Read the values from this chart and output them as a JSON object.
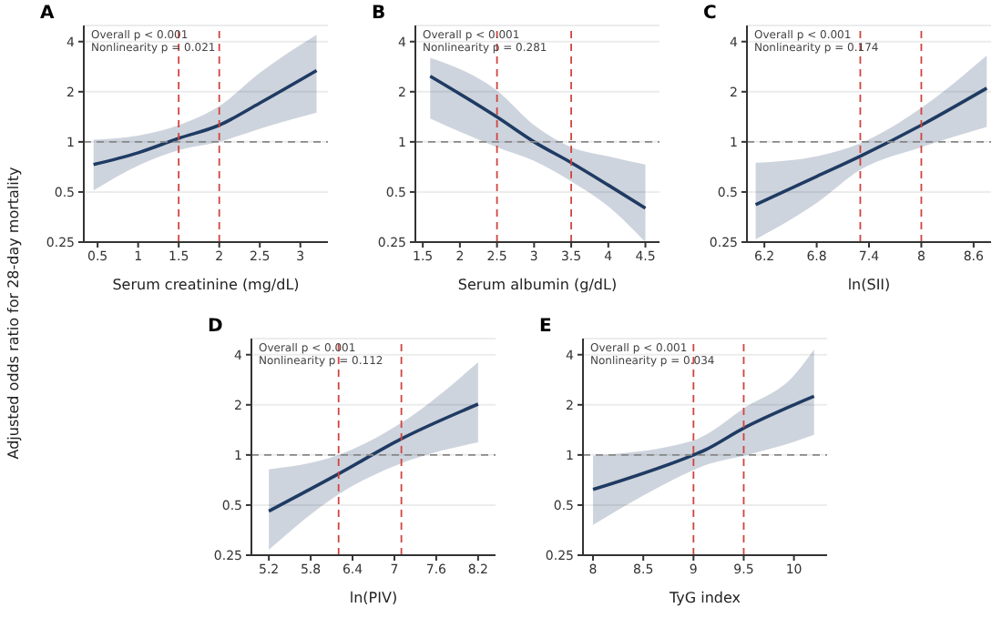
{
  "chart_data": [
    {
      "type": "line",
      "title": "A",
      "xlabel": "Serum creatinine (mg/dL)",
      "ylabel": "Adjusted odds ratio for 28-day mortality",
      "annotations": [
        "Overall p < 0.001",
        "Nonlinearity p = 0.021"
      ],
      "log": "y",
      "grid": "y",
      "xlim": [
        0.33,
        3.34
      ],
      "xticks": [
        0.5,
        1.0,
        1.5,
        2.0,
        2.5,
        3.0
      ],
      "ylim": [
        0.25,
        5
      ],
      "yticks": [
        0.25,
        0.5,
        1,
        2,
        4
      ],
      "series": [
        {
          "color": "#1f3b63",
          "x": [
            0.45,
            1.0,
            1.5,
            2.0,
            2.5,
            3.2
          ],
          "values": [
            0.73,
            0.86,
            1.05,
            1.26,
            1.71,
            2.68
          ],
          "lower": [
            0.51,
            0.72,
            0.89,
            1.0,
            1.2,
            1.5
          ],
          "upper": [
            1.03,
            1.09,
            1.26,
            1.64,
            2.6,
            4.4
          ]
        }
      ],
      "ref_lines": [
        {
          "axis": "x",
          "value": 1.5,
          "color": "#d0443f",
          "line_style": "dashed"
        },
        {
          "axis": "x",
          "value": 2.0,
          "color": "#d0443f",
          "line_style": "dashed"
        },
        {
          "axis": "y",
          "value": 1,
          "color": "#888888",
          "line_style": "dashed"
        }
      ]
    },
    {
      "type": "line",
      "title": "B",
      "xlabel": "Serum albumin (g/dL)",
      "annotations": [
        "Overall p < 0.001",
        "Nonlinearity p = 0.281"
      ],
      "log": "y",
      "grid": "y",
      "xlim": [
        1.4,
        4.69
      ],
      "xticks": [
        1.5,
        2.0,
        2.5,
        3.0,
        3.5,
        4.0,
        4.5
      ],
      "ylim": [
        0.25,
        5
      ],
      "yticks": [
        0.25,
        0.5,
        1,
        2,
        4
      ],
      "series": [
        {
          "color": "#1f3b63",
          "x": [
            1.6,
            2.5,
            3.0,
            3.5,
            4.0,
            4.5
          ],
          "values": [
            2.48,
            1.41,
            1.0,
            0.75,
            0.55,
            0.4
          ],
          "lower": [
            1.38,
            0.93,
            0.77,
            0.58,
            0.41,
            0.25
          ],
          "upper": [
            3.2,
            2.03,
            1.26,
            0.93,
            0.82,
            0.73
          ]
        }
      ],
      "ref_lines": [
        {
          "axis": "x",
          "value": 2.5,
          "color": "#d0443f",
          "line_style": "dashed"
        },
        {
          "axis": "x",
          "value": 3.5,
          "color": "#d0443f",
          "line_style": "dashed"
        },
        {
          "axis": "y",
          "value": 1,
          "color": "#888888",
          "line_style": "dashed"
        }
      ]
    },
    {
      "type": "line",
      "title": "C",
      "xlabel": "ln(SII)",
      "annotations": [
        "Overall p < 0.001",
        "Nonlinearity p = 0.174"
      ],
      "log": "y",
      "grid": "y",
      "xlim": [
        6.0,
        8.8
      ],
      "xticks": [
        6.2,
        6.8,
        7.4,
        8.0,
        8.6
      ],
      "ylim": [
        0.25,
        5
      ],
      "yticks": [
        0.25,
        0.5,
        1,
        2,
        4
      ],
      "series": [
        {
          "color": "#1f3b63",
          "x": [
            6.1,
            6.8,
            7.3,
            8.0,
            8.75
          ],
          "values": [
            0.42,
            0.62,
            0.82,
            1.26,
            2.1
          ],
          "lower": [
            0.26,
            0.43,
            0.68,
            0.93,
            1.23
          ],
          "upper": [
            0.75,
            0.82,
            0.98,
            1.6,
            3.3
          ]
        }
      ],
      "ref_lines": [
        {
          "axis": "x",
          "value": 7.3,
          "color": "#d0443f",
          "line_style": "dashed"
        },
        {
          "axis": "x",
          "value": 8.0,
          "color": "#d0443f",
          "line_style": "dashed"
        },
        {
          "axis": "y",
          "value": 1,
          "color": "#888888",
          "line_style": "dashed"
        }
      ]
    },
    {
      "type": "line",
      "title": "D",
      "xlabel": "ln(PIV)",
      "annotations": [
        "Overall p < 0.001",
        "Nonlinearity p = 0.112"
      ],
      "log": "y",
      "grid": "y",
      "xlim": [
        4.95,
        8.45
      ],
      "xticks": [
        5.2,
        5.8,
        6.4,
        7.0,
        7.6,
        8.2
      ],
      "ylim": [
        0.25,
        5
      ],
      "yticks": [
        0.25,
        0.5,
        1,
        2,
        4
      ],
      "series": [
        {
          "color": "#1f3b63",
          "x": [
            5.2,
            6.2,
            7.1,
            8.2
          ],
          "values": [
            0.46,
            0.77,
            1.25,
            2.02
          ],
          "lower": [
            0.27,
            0.58,
            0.89,
            1.19
          ],
          "upper": [
            0.82,
            1.0,
            1.56,
            3.6
          ]
        }
      ],
      "ref_lines": [
        {
          "axis": "x",
          "value": 6.2,
          "color": "#d0443f",
          "line_style": "dashed"
        },
        {
          "axis": "x",
          "value": 7.1,
          "color": "#d0443f",
          "line_style": "dashed"
        },
        {
          "axis": "y",
          "value": 1,
          "color": "#888888",
          "line_style": "dashed"
        }
      ]
    },
    {
      "type": "line",
      "title": "E",
      "xlabel": "TyG index",
      "annotations": [
        "Overall p < 0.001",
        "Nonlinearity p = 0.034"
      ],
      "log": "y",
      "grid": "y",
      "xlim": [
        7.9,
        10.33
      ],
      "xticks": [
        8.0,
        8.5,
        9.0,
        9.5,
        10.0
      ],
      "ylim": [
        0.25,
        5
      ],
      "yticks": [
        0.25,
        0.5,
        1,
        2,
        4
      ],
      "series": [
        {
          "color": "#1f3b63",
          "x": [
            8.0,
            9.0,
            9.1,
            9.5,
            10.0,
            10.2
          ],
          "values": [
            0.62,
            1.0,
            1.06,
            1.45,
            2.0,
            2.25
          ],
          "lower": [
            0.38,
            0.81,
            0.86,
            0.99,
            1.2,
            1.32
          ],
          "upper": [
            0.99,
            1.22,
            1.3,
            1.9,
            3.0,
            4.3
          ]
        }
      ],
      "ref_lines": [
        {
          "axis": "x",
          "value": 9.0,
          "color": "#d0443f",
          "line_style": "dashed"
        },
        {
          "axis": "x",
          "value": 9.5,
          "color": "#d0443f",
          "line_style": "dashed"
        },
        {
          "axis": "y",
          "value": 1,
          "color": "#888888",
          "line_style": "dashed"
        }
      ]
    }
  ]
}
